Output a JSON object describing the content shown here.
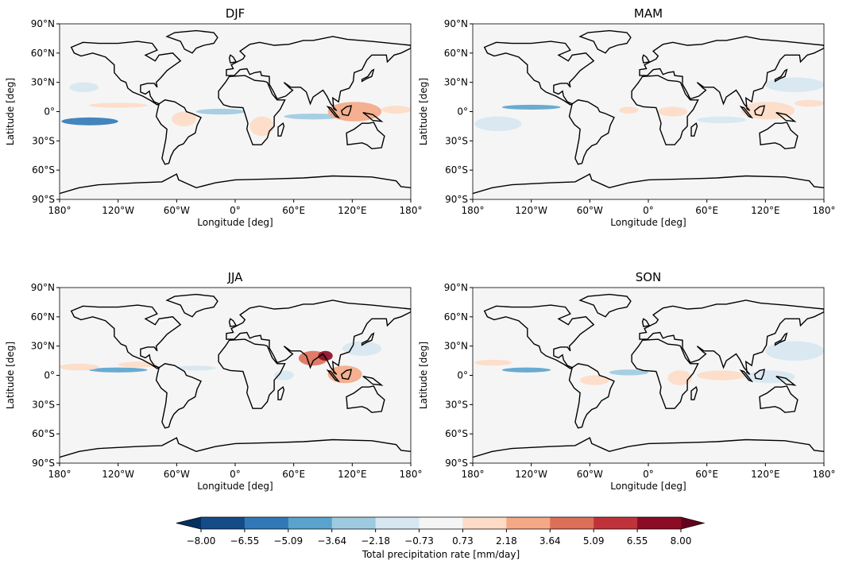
{
  "chart_data": {
    "type": "heatmap",
    "projection": "equirectangular",
    "panels": [
      {
        "title": "DJF",
        "anomalies": [
          {
            "lon": [
              -150,
              -90
            ],
            "lat": [
              4,
              9
            ],
            "value": 1.5
          },
          {
            "lon": [
              -178,
              -120
            ],
            "lat": [
              -14,
              -6
            ],
            "value": -5.5
          },
          {
            "lon": [
              -40,
              10
            ],
            "lat": [
              -3,
              3
            ],
            "value": -2.5
          },
          {
            "lon": [
              50,
              110
            ],
            "lat": [
              -8,
              -2
            ],
            "value": -2.5
          },
          {
            "lon": [
              15,
              40
            ],
            "lat": [
              -25,
              -5
            ],
            "value": 1.5
          },
          {
            "lon": [
              95,
              150
            ],
            "lat": [
              -10,
              10
            ],
            "value": 2.5
          },
          {
            "lon": [
              150,
              180
            ],
            "lat": [
              -2,
              6
            ],
            "value": 1.5
          },
          {
            "lon": [
              -170,
              -140
            ],
            "lat": [
              20,
              30
            ],
            "value": -1.5
          },
          {
            "lon": [
              -65,
              -40
            ],
            "lat": [
              -15,
              0
            ],
            "value": 1.5
          }
        ]
      },
      {
        "title": "MAM",
        "anomalies": [
          {
            "lon": [
              -150,
              -90
            ],
            "lat": [
              2,
              7
            ],
            "value": -4
          },
          {
            "lon": [
              -178,
              -130
            ],
            "lat": [
              -20,
              -5
            ],
            "value": -1.5
          },
          {
            "lon": [
              -30,
              -10
            ],
            "lat": [
              -2,
              5
            ],
            "value": 1.5
          },
          {
            "lon": [
              10,
              40
            ],
            "lat": [
              -5,
              5
            ],
            "value": 1.5
          },
          {
            "lon": [
              50,
              100
            ],
            "lat": [
              -12,
              -5
            ],
            "value": -1.5
          },
          {
            "lon": [
              95,
              150
            ],
            "lat": [
              -8,
              10
            ],
            "value": 2
          },
          {
            "lon": [
              120,
              180
            ],
            "lat": [
              20,
              35
            ],
            "value": -1.5
          },
          {
            "lon": [
              150,
              180
            ],
            "lat": [
              5,
              12
            ],
            "value": 1.5
          }
        ]
      },
      {
        "title": "JJA",
        "anomalies": [
          {
            "lon": [
              -150,
              -90
            ],
            "lat": [
              3,
              8
            ],
            "value": -5
          },
          {
            "lon": [
              -120,
              -80
            ],
            "lat": [
              8,
              14
            ],
            "value": 1.5
          },
          {
            "lon": [
              -60,
              -20
            ],
            "lat": [
              5,
              10
            ],
            "value": -2
          },
          {
            "lon": [
              65,
              95
            ],
            "lat": [
              10,
              25
            ],
            "value": 5
          },
          {
            "lon": [
              85,
              100
            ],
            "lat": [
              15,
              25
            ],
            "value": 7
          },
          {
            "lon": [
              95,
              130
            ],
            "lat": [
              -8,
              10
            ],
            "value": 3
          },
          {
            "lon": [
              110,
              150
            ],
            "lat": [
              20,
              35
            ],
            "value": -2
          },
          {
            "lon": [
              -180,
              -140
            ],
            "lat": [
              5,
              12
            ],
            "value": 1.5
          },
          {
            "lon": [
              40,
              60
            ],
            "lat": [
              -5,
              5
            ],
            "value": -1.5
          }
        ]
      },
      {
        "title": "SON",
        "anomalies": [
          {
            "lon": [
              -150,
              -100
            ],
            "lat": [
              3,
              8
            ],
            "value": -4
          },
          {
            "lon": [
              -178,
              -140
            ],
            "lat": [
              10,
              16
            ],
            "value": 1.5
          },
          {
            "lon": [
              -40,
              0
            ],
            "lat": [
              0,
              6
            ],
            "value": -2.5
          },
          {
            "lon": [
              20,
              45
            ],
            "lat": [
              -10,
              5
            ],
            "value": 1.5
          },
          {
            "lon": [
              50,
              100
            ],
            "lat": [
              -5,
              5
            ],
            "value": 1.5
          },
          {
            "lon": [
              100,
              150
            ],
            "lat": [
              -8,
              5
            ],
            "value": -2
          },
          {
            "lon": [
              120,
              180
            ],
            "lat": [
              15,
              35
            ],
            "value": -1.5
          },
          {
            "lon": [
              -70,
              -40
            ],
            "lat": [
              -10,
              0
            ],
            "value": 1.5
          }
        ]
      }
    ],
    "xlabel": "Longitude [deg]",
    "ylabel": "Latitude [deg]",
    "xticks": [
      "180°",
      "120°W",
      "60°W",
      "0°",
      "60°E",
      "120°E",
      "180°"
    ],
    "yticks": [
      "90°N",
      "60°N",
      "30°N",
      "0°",
      "30°S",
      "60°S",
      "90°S"
    ],
    "xlim": [
      -180,
      180
    ],
    "ylim": [
      -90,
      90
    ],
    "colorbar": {
      "label": "Total precipitation rate [mm/day]",
      "ticks": [
        "−8.00",
        "−6.55",
        "−5.09",
        "−3.64",
        "−2.18",
        "−0.73",
        "0.73",
        "2.18",
        "3.64",
        "5.09",
        "6.55",
        "8.00"
      ],
      "levels": [
        -8,
        -6.55,
        -5.09,
        -3.64,
        -2.18,
        -0.73,
        0.73,
        2.18,
        3.64,
        5.09,
        6.55,
        8
      ],
      "colors": [
        "#134c87",
        "#3079b6",
        "#5aa3cd",
        "#9ecae1",
        "#d6e7f1",
        "#f5f5f5",
        "#fddbc7",
        "#f4a886",
        "#dc6f58",
        "#c0323a",
        "#8a0c25"
      ],
      "extend_low": "#053061",
      "extend_high": "#67001f",
      "colormap": "RdBu_r"
    }
  }
}
